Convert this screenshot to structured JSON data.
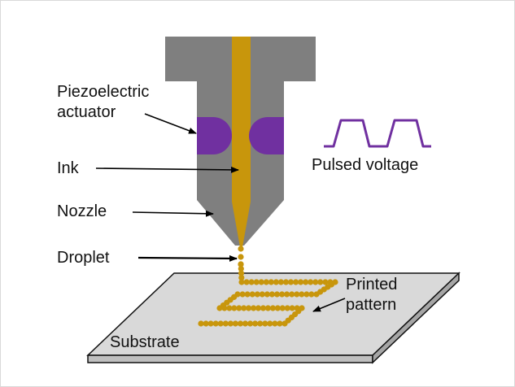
{
  "labels": {
    "piezo": [
      "Piezoelectric",
      "actuator"
    ],
    "ink": "Ink",
    "nozzle": "Nozzle",
    "droplet": "Droplet",
    "pulsed_voltage": "Pulsed voltage",
    "printed_pattern": [
      "Printed",
      "pattern"
    ],
    "substrate": "Substrate"
  },
  "colors": {
    "nozzle_body": "#7f7f7f",
    "ink": "#c8960c",
    "actuator": "#7030a0",
    "waveform": "#7030a0",
    "substrate_top": "#d9d9d9",
    "substrate_edge": "#111111",
    "arrow": "#000000"
  }
}
